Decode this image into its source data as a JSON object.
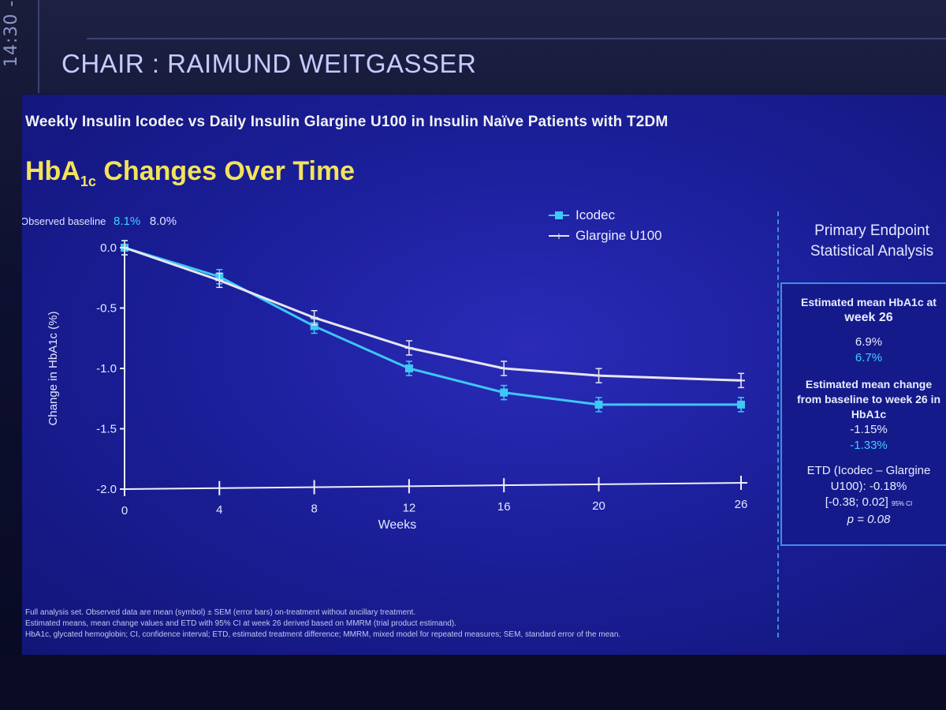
{
  "session": {
    "time_label": "14:30 -",
    "chair": "CHAIR : RAIMUND WEITGASSER"
  },
  "slide": {
    "subtitle": "Weekly Insulin Icodec vs Daily Insulin Glargine U100 in Insulin Naïve Patients with T2DM",
    "title_main": "HbA",
    "title_sub": "1c",
    "title_rest": " Changes Over Time",
    "baseline_label": "Observed baseline",
    "baseline_icodec": "8.1%",
    "baseline_glargine": "8.0%"
  },
  "legend": {
    "icodec": "Icodec",
    "glargine": "Glargine U100"
  },
  "colors": {
    "icodec": "#3ec8f5",
    "glargine": "#e6e6f0",
    "axis": "#f0f0f8"
  },
  "chart_data": {
    "type": "line",
    "title": "HbA1c Changes Over Time",
    "xlabel": "Weeks",
    "ylabel": "Change in HbA1c (%)",
    "x": [
      0,
      4,
      8,
      12,
      16,
      20,
      26
    ],
    "x_ticks": [
      "0",
      "4",
      "8",
      "12",
      "16",
      "20",
      "26"
    ],
    "y_ticks": [
      "0.0",
      "-0.5",
      "-1.0",
      "-1.5",
      "-2.0"
    ],
    "ylim": [
      -2.0,
      0.0
    ],
    "series": [
      {
        "name": "Icodec",
        "values": [
          0.0,
          -0.24,
          -0.65,
          -1.0,
          -1.2,
          -1.3,
          -1.3
        ]
      },
      {
        "name": "Glargine U100",
        "values": [
          0.0,
          -0.27,
          -0.58,
          -0.83,
          -1.0,
          -1.06,
          -1.1
        ]
      }
    ]
  },
  "stats": {
    "title_line1": "Primary Endpoint",
    "title_line2": "Statistical Analysis",
    "mean_label_1": "Estimated mean HbA1c at",
    "mean_label_2": "week 26",
    "mean_glargine": "6.9%",
    "mean_icodec": "6.7%",
    "change_label_1": "Estimated mean change",
    "change_label_2": "from baseline to week 26 in",
    "change_label_3": "HbA1c",
    "change_glargine": "-1.15%",
    "change_icodec": "-1.33%",
    "etd_line1": "ETD (Icodec – Glargine",
    "etd_line2": "U100): -0.18%",
    "etd_line3": "[-0.38; 0.02]",
    "etd_ci": "95% CI",
    "p_value": "p = 0.08"
  },
  "footnotes": {
    "line1": "Full analysis set. Observed data are mean (symbol) ± SEM (error bars) on-treatment without ancillary treatment.",
    "line2": "Estimated means, mean change values and ETD with 95% CI at week 26 derived based on MMRM (trial product estimand).",
    "line3": "HbA1c, glycated hemoglobin; CI, confidence interval; ETD, estimated treatment difference; MMRM, mixed model for repeated measures; SEM, standard error of the mean."
  }
}
